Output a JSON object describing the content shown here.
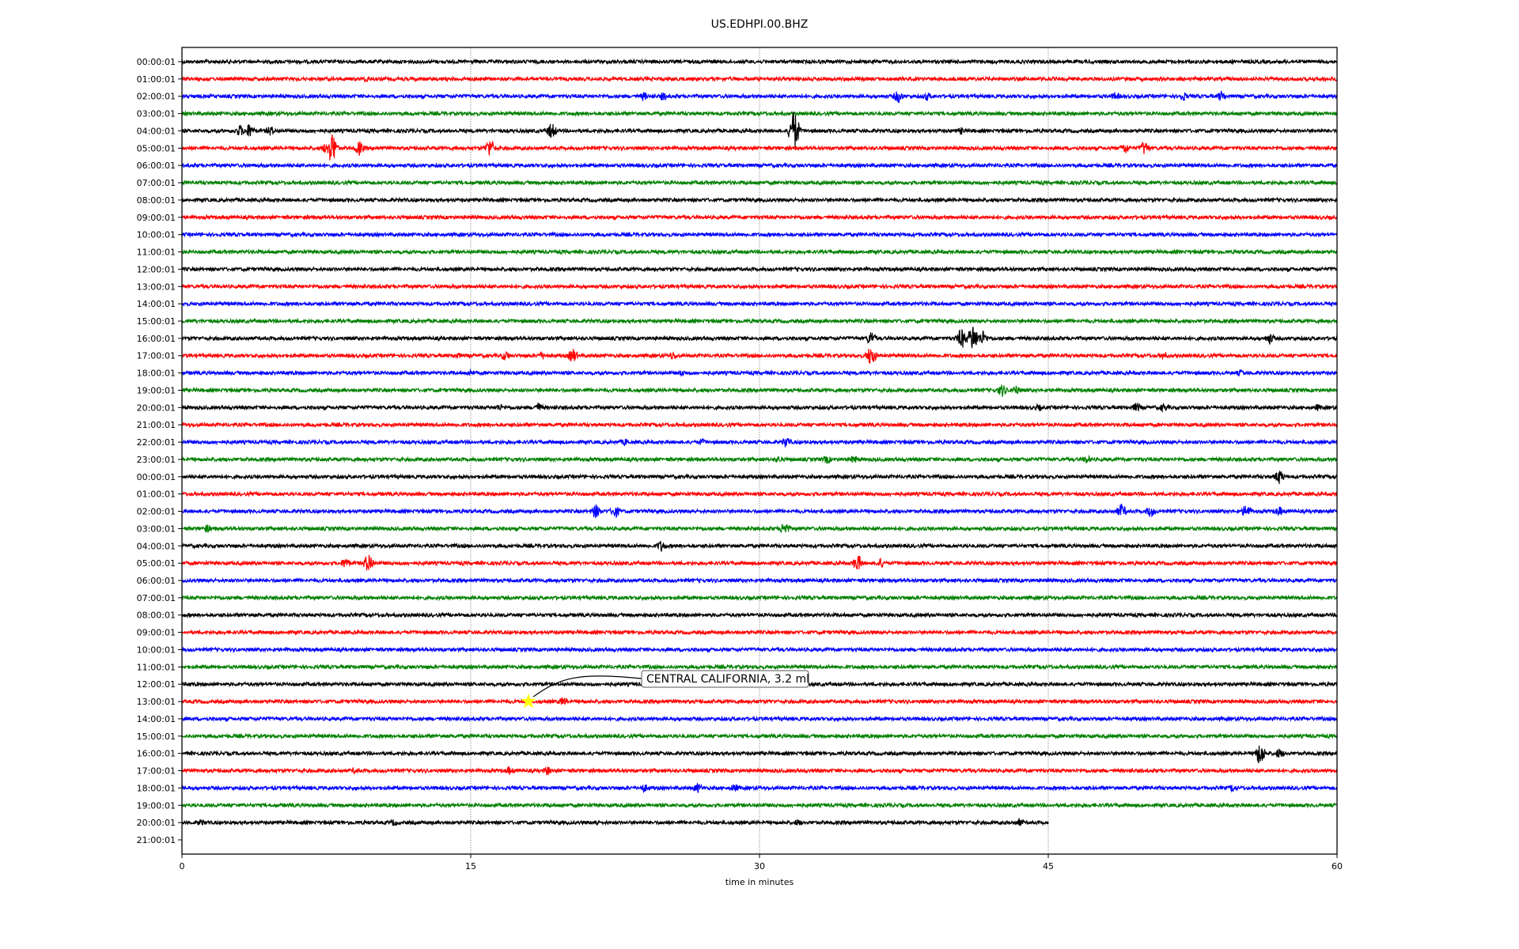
{
  "chart_data": {
    "type": "line",
    "title": "US.EDHPI.00.BHZ",
    "xlabel": "time in minutes",
    "ylabel": "",
    "xlim": [
      0,
      60
    ],
    "xticks": [
      0,
      15,
      30,
      45,
      60
    ],
    "grid": "vertical dotted at 15, 30, 45",
    "trace_colors": [
      "#000000",
      "#ff0000",
      "#0000ff",
      "#008000"
    ],
    "row_labels": [
      "00:00:01",
      "01:00:01",
      "02:00:01",
      "03:00:01",
      "04:00:01",
      "05:00:01",
      "06:00:01",
      "07:00:01",
      "08:00:01",
      "09:00:01",
      "10:00:01",
      "11:00:01",
      "12:00:01",
      "13:00:01",
      "14:00:01",
      "15:00:01",
      "16:00:01",
      "17:00:01",
      "18:00:01",
      "19:00:01",
      "20:00:01",
      "21:00:01",
      "22:00:01",
      "23:00:01",
      "00:00:01",
      "01:00:01",
      "02:00:01",
      "03:00:01",
      "04:00:01",
      "05:00:01",
      "06:00:01",
      "07:00:01",
      "08:00:01",
      "09:00:01",
      "10:00:01",
      "11:00:01",
      "12:00:01",
      "13:00:01",
      "14:00:01",
      "15:00:01",
      "16:00:01",
      "17:00:01",
      "18:00:01",
      "19:00:01",
      "20:00:01",
      "21:00:01"
    ],
    "last_trace_end_minute": 45,
    "empty_rows": [
      45
    ],
    "events": [
      [
        1,
        9.6,
        5
      ],
      [
        2,
        24,
        6
      ],
      [
        2,
        25,
        6
      ],
      [
        2,
        37.2,
        9
      ],
      [
        2,
        38.7,
        6
      ],
      [
        2,
        48.5,
        6
      ],
      [
        2,
        52,
        7
      ],
      [
        2,
        54,
        7
      ],
      [
        4,
        3,
        8
      ],
      [
        4,
        3.5,
        10
      ],
      [
        4,
        4.6,
        7
      ],
      [
        4,
        19.2,
        11
      ],
      [
        4,
        31.8,
        28
      ],
      [
        4,
        40.5,
        5
      ],
      [
        5,
        7.5,
        8
      ],
      [
        5,
        7.8,
        22
      ],
      [
        5,
        9.2,
        10
      ],
      [
        5,
        16,
        13
      ],
      [
        5,
        49,
        8
      ],
      [
        5,
        50,
        10
      ],
      [
        16,
        35.8,
        10
      ],
      [
        16,
        40.5,
        14
      ],
      [
        16,
        41.1,
        20
      ],
      [
        16,
        41.6,
        10
      ],
      [
        16,
        56.5,
        8
      ],
      [
        17,
        14.3,
        5
      ],
      [
        17,
        16.8,
        7
      ],
      [
        17,
        18.7,
        6
      ],
      [
        17,
        20.3,
        10
      ],
      [
        17,
        25.5,
        6
      ],
      [
        17,
        35.8,
        14
      ],
      [
        17,
        51,
        6
      ],
      [
        18,
        15,
        5
      ],
      [
        18,
        26,
        5
      ],
      [
        18,
        55,
        5
      ],
      [
        19,
        42.6,
        9
      ],
      [
        19,
        43.3,
        7
      ],
      [
        20,
        16.5,
        5
      ],
      [
        20,
        18.5,
        7
      ],
      [
        20,
        44.5,
        5
      ],
      [
        20,
        49.6,
        7
      ],
      [
        20,
        51,
        6
      ],
      [
        20,
        59,
        5
      ],
      [
        22,
        23,
        5
      ],
      [
        22,
        27,
        5
      ],
      [
        22,
        31.4,
        8
      ],
      [
        23,
        31,
        5
      ],
      [
        23,
        33.5,
        6
      ],
      [
        23,
        34.9,
        6
      ],
      [
        23,
        47,
        6
      ],
      [
        24,
        57,
        10
      ],
      [
        26,
        21.5,
        10
      ],
      [
        26,
        22.5,
        9
      ],
      [
        26,
        48.8,
        10
      ],
      [
        26,
        50.3,
        8
      ],
      [
        26,
        55.3,
        10
      ],
      [
        26,
        57,
        7
      ],
      [
        27,
        1.3,
        6
      ],
      [
        27,
        31.3,
        10
      ],
      [
        28,
        24.9,
        8
      ],
      [
        29,
        8.5,
        8
      ],
      [
        29,
        9.7,
        14
      ],
      [
        29,
        35.1,
        12
      ],
      [
        29,
        36.3,
        7
      ],
      [
        37,
        19.8,
        7
      ],
      [
        40,
        56,
        16
      ],
      [
        40,
        57,
        7
      ],
      [
        41,
        9,
        5
      ],
      [
        41,
        17,
        6
      ],
      [
        41,
        19,
        6
      ],
      [
        42,
        24,
        6
      ],
      [
        42,
        26.8,
        7
      ],
      [
        42,
        28.7,
        6
      ],
      [
        42,
        54.6,
        6
      ],
      [
        44,
        1,
        5
      ],
      [
        44,
        11,
        5
      ],
      [
        44,
        21.5,
        5
      ],
      [
        44,
        32,
        5
      ],
      [
        44,
        43.5,
        6
      ]
    ],
    "annotation": {
      "text": "CENTRAL CALIFORNIA, 3.2 ml",
      "row": 37,
      "minute": 18.0,
      "marker": "star",
      "marker_color": "#ffff00"
    }
  }
}
